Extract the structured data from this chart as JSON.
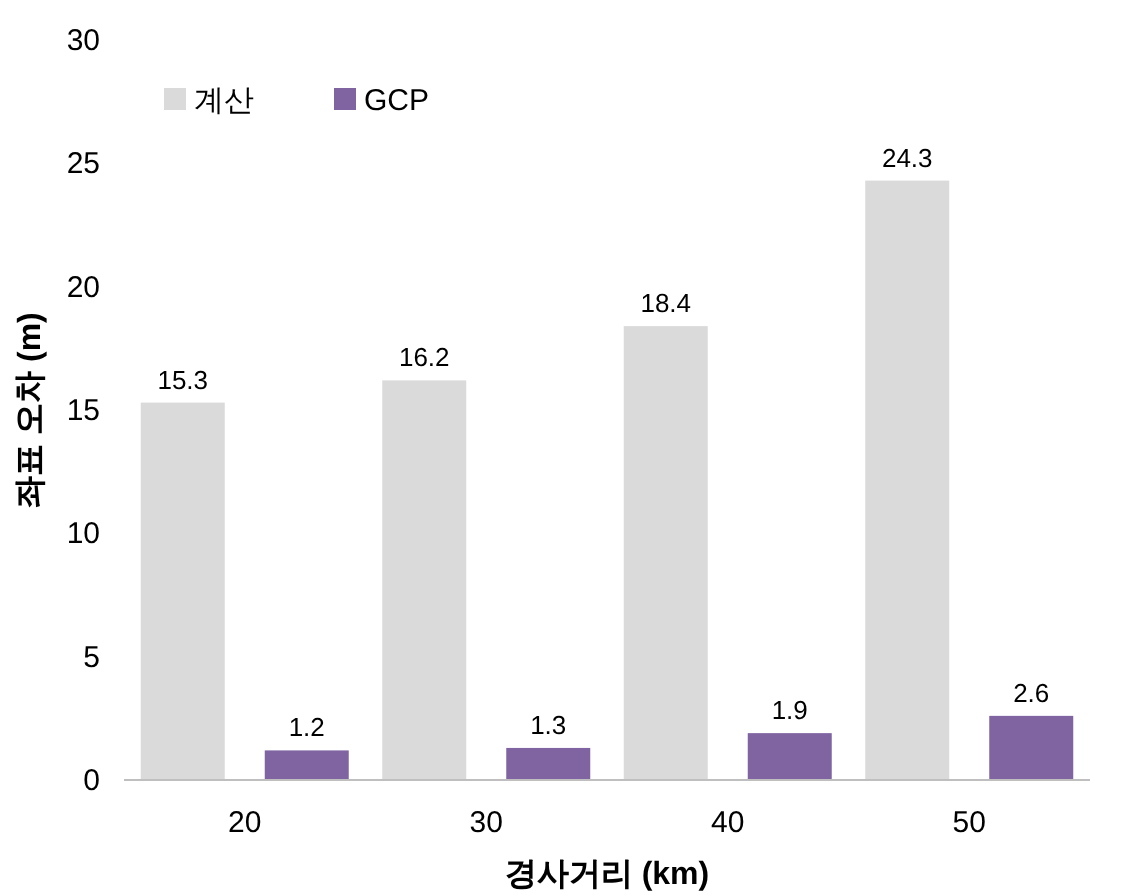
{
  "chart_data": {
    "type": "bar",
    "xlabel": "경사거리 (km)",
    "ylabel": "좌표 오차 (m)",
    "categories": [
      "20",
      "30",
      "40",
      "50"
    ],
    "series": [
      {
        "name": "계산",
        "color": "#dadada",
        "values": [
          15.3,
          16.2,
          18.4,
          24.3
        ]
      },
      {
        "name": "GCP",
        "color": "#8064a2",
        "values": [
          1.2,
          1.3,
          1.9,
          2.6
        ]
      }
    ],
    "ylim": [
      0,
      30
    ],
    "yticks": [
      0,
      5,
      10,
      15,
      20,
      25,
      30
    ],
    "data_labels": true,
    "legend": "top left",
    "grid": false
  }
}
